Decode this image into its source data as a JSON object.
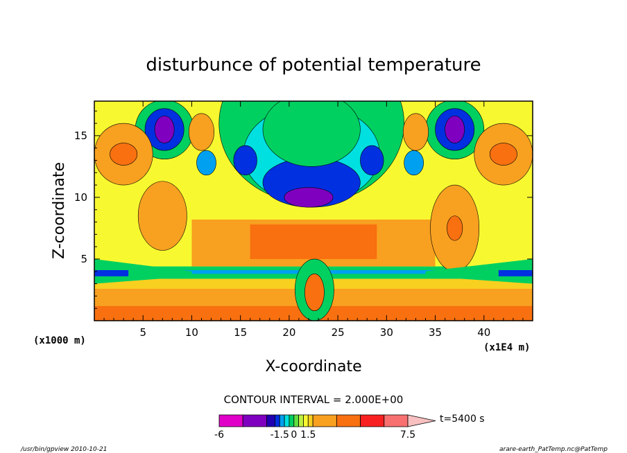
{
  "chart_data": {
    "type": "heatmap",
    "title": "disturbunce of potential temperature",
    "xlabel": "X-coordinate",
    "ylabel": "Z-coordinate",
    "x_unit": "(x1E4 m)",
    "y_unit": "(x1000 m)",
    "x_range": [
      0,
      45
    ],
    "y_range": [
      0,
      17.8
    ],
    "x_ticks": [
      5,
      10,
      15,
      20,
      25,
      30,
      35,
      40
    ],
    "y_ticks": [
      5,
      10,
      15
    ],
    "contour_interval_text": "CONTOUR INTERVAL = 2.000E+00",
    "time_label": "t=5400 s",
    "colorbar": {
      "tick_labels": [
        "-6",
        "-1.5",
        "0",
        "1.5",
        "7.5"
      ],
      "tick_values": [
        -6,
        -1.5,
        0,
        1.5,
        7.5
      ],
      "levels": [
        -6,
        -4.5,
        -3,
        -2,
        -1.5,
        -1,
        -0.5,
        0,
        0.5,
        1,
        1.5,
        2,
        3,
        4.5,
        6,
        7.5
      ],
      "colors": [
        "#e000c8",
        "#8000c0",
        "#2000b0",
        "#0030e0",
        "#00a0f0",
        "#00e0e0",
        "#00d060",
        "#60e040",
        "#c0f040",
        "#f8f830",
        "#f8d020",
        "#f8a020",
        "#f87010",
        "#f82020",
        "#f87070"
      ],
      "over_color": "#f8c0c0"
    },
    "features": [
      {
        "x": 7.2,
        "z": 15.5,
        "value": -3.5
      },
      {
        "x": 37.0,
        "z": 15.5,
        "value": -3.5
      },
      {
        "x": 3.0,
        "z": 13.5,
        "value": 2.5
      },
      {
        "x": 42.0,
        "z": 13.5,
        "value": 2.5
      },
      {
        "x": 11.0,
        "z": 15.0,
        "value": 2.0
      },
      {
        "x": 33.0,
        "z": 15.0,
        "value": 2.0
      },
      {
        "x": 22.0,
        "z": 10.0,
        "value": -3.5
      },
      {
        "x": 15.5,
        "z": 13.0,
        "value": -2.5
      },
      {
        "x": 28.5,
        "z": 13.0,
        "value": -2.5
      },
      {
        "x": 7.0,
        "z": 8.5,
        "value": 1.5
      },
      {
        "x": 37.0,
        "z": 7.5,
        "value": 2.0
      },
      {
        "x": 22.5,
        "z": 6.5,
        "value": 2.5
      },
      {
        "x": 22.6,
        "z": 2.5,
        "value": 2.0
      }
    ]
  },
  "footer": {
    "left": "/usr/bin/gpview  2010-10-21",
    "right": "arare-earth_PatTemp.nc@PatTemp"
  }
}
